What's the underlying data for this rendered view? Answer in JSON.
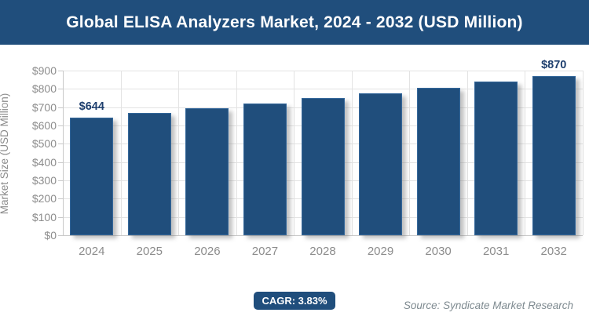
{
  "header": {
    "title": "Global ELISA Analyzers Market, 2024 - 2032 (USD Million)"
  },
  "chart_data": {
    "type": "bar",
    "title": "Global ELISA Analyzers Market, 2024 - 2032 (USD Million)",
    "categories": [
      "2024",
      "2025",
      "2026",
      "2027",
      "2028",
      "2029",
      "2030",
      "2031",
      "2032"
    ],
    "values": [
      644,
      669,
      694,
      721,
      748,
      777,
      807,
      838,
      870
    ],
    "point_labels": [
      {
        "index": 0,
        "text": "$644"
      },
      {
        "index": 8,
        "text": "$870"
      }
    ],
    "xlabel": "",
    "ylabel": "Market Size (USD Million)",
    "ylim": [
      0,
      900
    ],
    "ytick_step": 100,
    "ytick_prefix": "$",
    "grid": true,
    "legend": "none",
    "bar_color": "#204E7C"
  },
  "footer": {
    "cagr_label": "CAGR: 3.83%",
    "source": "Source: Syndicate Market Research"
  },
  "colors": {
    "header_bg": "#204E7C",
    "header_text": "#FFFFFF",
    "bar_fill": "#204E7C",
    "bar_border": "#35689B",
    "value_label": "#1E3F6E",
    "grid_line": "#E3E3E3",
    "axis_line": "#C8C8C8",
    "tick_text": "#8C8C8C",
    "badge_bg": "#204E7C",
    "badge_text": "#FFFFFF",
    "source_text": "#7E8A90"
  }
}
